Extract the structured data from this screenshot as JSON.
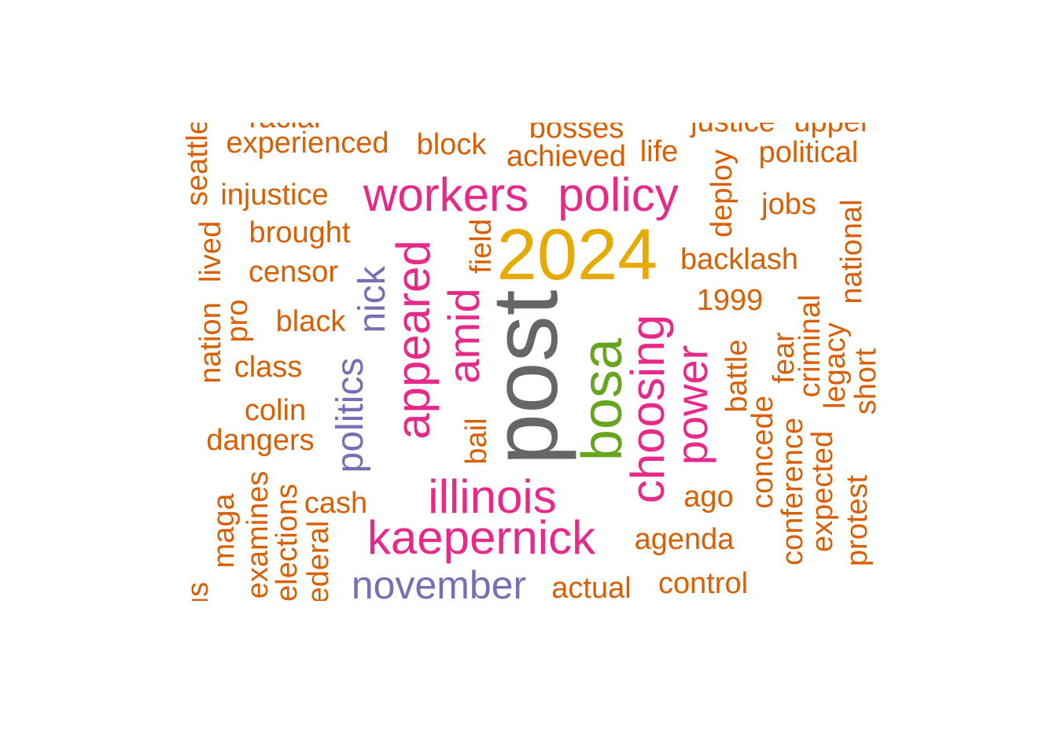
{
  "colors": {
    "orange": "#D95F02",
    "magenta": "#E7298A",
    "purple": "#7570B3",
    "green": "#66A61E",
    "gold": "#E6AB02",
    "gray": "#666666"
  },
  "words": [
    {
      "text": "post",
      "color": "gray",
      "rotated": true
    },
    {
      "text": "2024",
      "color": "gold",
      "rotated": false
    },
    {
      "text": "bosa",
      "color": "green",
      "rotated": true
    },
    {
      "text": "workers",
      "color": "magenta",
      "rotated": false
    },
    {
      "text": "policy",
      "color": "magenta",
      "rotated": false
    },
    {
      "text": "appeared",
      "color": "magenta",
      "rotated": true
    },
    {
      "text": "kaepernick",
      "color": "magenta",
      "rotated": false
    },
    {
      "text": "illinois",
      "color": "magenta",
      "rotated": false
    },
    {
      "text": "choosing",
      "color": "magenta",
      "rotated": true
    },
    {
      "text": "power",
      "color": "magenta",
      "rotated": true
    },
    {
      "text": "amid",
      "color": "magenta",
      "rotated": true
    },
    {
      "text": "november",
      "color": "purple",
      "rotated": false
    },
    {
      "text": "politics",
      "color": "purple",
      "rotated": true
    },
    {
      "text": "nick",
      "color": "purple",
      "rotated": true
    },
    {
      "text": "experienced",
      "color": "orange",
      "rotated": false
    },
    {
      "text": "block",
      "color": "orange",
      "rotated": false
    },
    {
      "text": "bosses",
      "color": "orange",
      "rotated": false
    },
    {
      "text": "achieved",
      "color": "orange",
      "rotated": false
    },
    {
      "text": "life",
      "color": "orange",
      "rotated": false
    },
    {
      "text": "justice",
      "color": "orange",
      "rotated": false
    },
    {
      "text": "upper",
      "color": "orange",
      "rotated": false
    },
    {
      "text": "political",
      "color": "orange",
      "rotated": false
    },
    {
      "text": "racial",
      "color": "orange",
      "rotated": false
    },
    {
      "text": "seattle",
      "color": "orange",
      "rotated": true
    },
    {
      "text": "injustice",
      "color": "orange",
      "rotated": false
    },
    {
      "text": "brought",
      "color": "orange",
      "rotated": false
    },
    {
      "text": "censor",
      "color": "orange",
      "rotated": false
    },
    {
      "text": "black",
      "color": "orange",
      "rotated": false
    },
    {
      "text": "class",
      "color": "orange",
      "rotated": false
    },
    {
      "text": "colin",
      "color": "orange",
      "rotated": false
    },
    {
      "text": "dangers",
      "color": "orange",
      "rotated": false
    },
    {
      "text": "cash",
      "color": "orange",
      "rotated": false
    },
    {
      "text": "jobs",
      "color": "orange",
      "rotated": false
    },
    {
      "text": "backlash",
      "color": "orange",
      "rotated": false
    },
    {
      "text": "1999",
      "color": "orange",
      "rotated": false
    },
    {
      "text": "ago",
      "color": "orange",
      "rotated": false
    },
    {
      "text": "agenda",
      "color": "orange",
      "rotated": false
    },
    {
      "text": "actual",
      "color": "orange",
      "rotated": false
    },
    {
      "text": "control",
      "color": "orange",
      "rotated": false
    },
    {
      "text": "deploy",
      "color": "orange",
      "rotated": true
    },
    {
      "text": "national",
      "color": "orange",
      "rotated": true
    },
    {
      "text": "criminal",
      "color": "orange",
      "rotated": true
    },
    {
      "text": "legacy",
      "color": "orange",
      "rotated": true
    },
    {
      "text": "short",
      "color": "orange",
      "rotated": true
    },
    {
      "text": "fear",
      "color": "orange",
      "rotated": true
    },
    {
      "text": "battle",
      "color": "orange",
      "rotated": true
    },
    {
      "text": "concede",
      "color": "orange",
      "rotated": true
    },
    {
      "text": "conference",
      "color": "orange",
      "rotated": true
    },
    {
      "text": "expected",
      "color": "orange",
      "rotated": true
    },
    {
      "text": "protest",
      "color": "orange",
      "rotated": true
    },
    {
      "text": "field",
      "color": "orange",
      "rotated": true
    },
    {
      "text": "bail",
      "color": "orange",
      "rotated": true
    },
    {
      "text": "nation",
      "color": "orange",
      "rotated": true
    },
    {
      "text": "lived",
      "color": "orange",
      "rotated": true
    },
    {
      "text": "pro",
      "color": "orange",
      "rotated": true
    },
    {
      "text": "maga",
      "color": "orange",
      "rotated": true
    },
    {
      "text": "examines",
      "color": "orange",
      "rotated": true
    },
    {
      "text": "elections",
      "color": "orange",
      "rotated": true
    },
    {
      "text": "federal",
      "color": "orange",
      "rotated": true
    },
    {
      "text": "us",
      "color": "orange",
      "rotated": true
    }
  ]
}
